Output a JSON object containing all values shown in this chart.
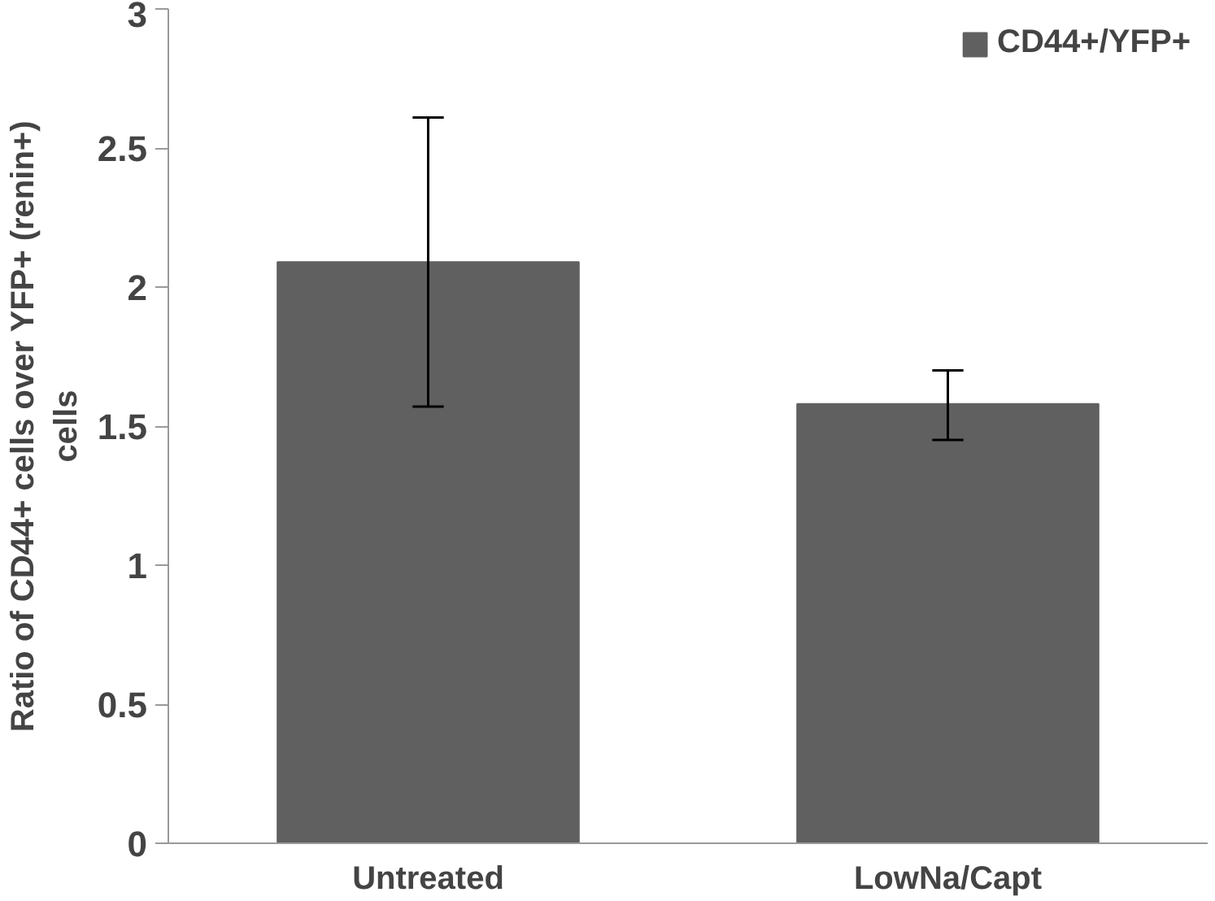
{
  "chart_data": {
    "type": "bar",
    "ylabel": "Ratio of CD44+ cells over YFP+ (renin+) cells",
    "categories": [
      "Untreated",
      "LowNa/Capt"
    ],
    "series": [
      {
        "name": "CD44+/YFP+",
        "color": "#606060",
        "values": [
          2.09,
          1.58
        ],
        "errors": [
          [
            1.57,
            2.61
          ],
          [
            1.45,
            1.7
          ]
        ]
      }
    ],
    "ylim": [
      0,
      3
    ],
    "yticks": [
      0,
      0.5,
      1,
      1.5,
      2,
      2.5,
      3
    ],
    "grid": false,
    "legend": "top right"
  }
}
